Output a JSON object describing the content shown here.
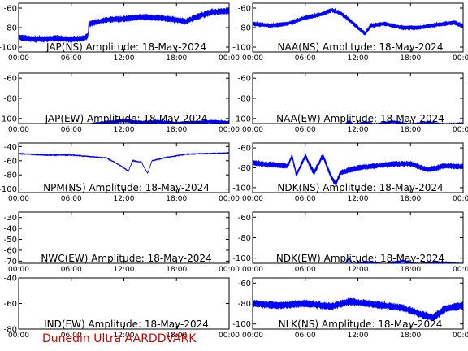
{
  "footer_text": "Dunedin Ultra AARDDVARK",
  "colors": {
    "trace": "#0000ff",
    "axes": "#000000",
    "background": "#ffffff",
    "footer": "#d40000"
  },
  "chart_data": [
    {
      "type": "line",
      "title": "JAP(NS) Amplitude: 18-May-2024",
      "ylim": [
        -105,
        -55
      ],
      "yticks": [
        -100,
        -80,
        -60
      ],
      "xticks": [
        "00:00",
        "06:00",
        "12:00",
        "18:00",
        "00:00"
      ],
      "xlim_hours": [
        0,
        24
      ],
      "series": [
        {
          "points": [
            [
              0,
              -90
            ],
            [
              2,
              -92
            ],
            [
              4,
              -91
            ],
            [
              6,
              -92
            ],
            [
              7.5,
              -91
            ],
            [
              7.9,
              -88
            ],
            [
              8,
              -76
            ],
            [
              10,
              -72
            ],
            [
              12,
              -71
            ],
            [
              14,
              -69
            ],
            [
              16,
              -70
            ],
            [
              18,
              -72
            ],
            [
              19,
              -74
            ],
            [
              20,
              -70
            ],
            [
              22,
              -64
            ],
            [
              24,
              -63
            ]
          ],
          "noise": 7
        }
      ]
    },
    {
      "type": "line",
      "title": "NAA(NS) Amplitude: 18-May-2024",
      "ylim": [
        -105,
        -55
      ],
      "yticks": [
        -100,
        -80,
        -60
      ],
      "xticks": [
        "00:00",
        "06:00",
        "12:00",
        "18:00",
        "00:00"
      ],
      "xlim_hours": [
        0,
        24
      ],
      "series": [
        {
          "points": [
            [
              0,
              -76
            ],
            [
              2,
              -78
            ],
            [
              4,
              -76
            ],
            [
              6,
              -70
            ],
            [
              8,
              -66
            ],
            [
              9,
              -62
            ],
            [
              10,
              -65
            ],
            [
              11,
              -72
            ],
            [
              12,
              -80
            ],
            [
              12.8,
              -86
            ],
            [
              13.5,
              -78
            ],
            [
              15,
              -76
            ],
            [
              17,
              -80
            ],
            [
              19,
              -80
            ],
            [
              21,
              -77
            ],
            [
              23,
              -75
            ],
            [
              24,
              -78
            ]
          ],
          "noise": 5
        }
      ]
    },
    {
      "type": "line",
      "title": "JAP(EW) Amplitude: 18-May-2024",
      "ylim": [
        -105,
        -55
      ],
      "yticks": [
        -100,
        -80,
        -60
      ],
      "xticks": [
        "00:00",
        "06:00",
        "12:00",
        "18:00",
        "00:00"
      ],
      "xlim_hours": [
        0,
        24
      ],
      "series": [
        {
          "points": [
            [
              8.2,
              -106
            ],
            [
              10,
              -104
            ],
            [
              12,
              -102
            ],
            [
              14,
              -104
            ],
            [
              16,
              -103
            ],
            [
              18,
              -105
            ],
            [
              20,
              -104
            ],
            [
              22,
              -103
            ],
            [
              24,
              -104
            ]
          ],
          "noise": 4
        }
      ]
    },
    {
      "type": "line",
      "title": "NAA(EW) Amplitude: 18-May-2024",
      "ylim": [
        -105,
        -55
      ],
      "yticks": [
        -100,
        -80,
        -60
      ],
      "xticks": [
        "00:00",
        "06:00",
        "12:00",
        "18:00",
        "00:00"
      ],
      "xlim_hours": [
        0,
        24
      ],
      "series": [
        {
          "points": [
            [
              10.5,
              -106
            ],
            [
              11,
              -103
            ],
            [
              11.5,
              -106
            ],
            [
              13,
              -104
            ],
            [
              14,
              -106
            ],
            [
              16,
              -103
            ],
            [
              18,
              -106
            ],
            [
              20,
              -104
            ],
            [
              22,
              -106
            ],
            [
              24,
              -105
            ]
          ],
          "noise": 3
        }
      ]
    },
    {
      "type": "line",
      "title": "NPM(NS) Amplitude: 18-May-2024",
      "ylim": [
        -105,
        -35
      ],
      "yticks": [
        -100,
        -80,
        -60,
        -40
      ],
      "xticks": [
        "00:00",
        "06:00",
        "12:00",
        "18:00",
        "00:00"
      ],
      "xlim_hours": [
        0,
        24
      ],
      "series": [
        {
          "points": [
            [
              0,
              -50
            ],
            [
              3,
              -52
            ],
            [
              6,
              -52
            ],
            [
              8,
              -54
            ],
            [
              10,
              -56
            ],
            [
              11.5,
              -66
            ],
            [
              12,
              -70
            ],
            [
              12.5,
              -75
            ],
            [
              13,
              -60
            ],
            [
              14,
              -62
            ],
            [
              14.7,
              -78
            ],
            [
              15.2,
              -60
            ],
            [
              17,
              -55
            ],
            [
              19,
              -51
            ],
            [
              21,
              -50
            ],
            [
              24,
              -49
            ]
          ],
          "noise": 2
        }
      ]
    },
    {
      "type": "line",
      "title": "NDK(NS) Amplitude: 18-May-2024",
      "ylim": [
        -105,
        -55
      ],
      "yticks": [
        -100,
        -80,
        -60
      ],
      "xticks": [
        "00:00",
        "06:00",
        "12:00",
        "18:00",
        "00:00"
      ],
      "xlim_hours": [
        0,
        24
      ],
      "series": [
        {
          "points": [
            [
              0,
              -75
            ],
            [
              2,
              -77
            ],
            [
              4,
              -78
            ],
            [
              4.5,
              -68
            ],
            [
              5,
              -87
            ],
            [
              6,
              -68
            ],
            [
              7,
              -85
            ],
            [
              8,
              -68
            ],
            [
              9,
              -90
            ],
            [
              9.5,
              -96
            ],
            [
              10,
              -85
            ],
            [
              12,
              -80
            ],
            [
              14,
              -78
            ],
            [
              16,
              -76
            ],
            [
              18,
              -76
            ],
            [
              20,
              -82
            ],
            [
              22,
              -78
            ],
            [
              24,
              -79
            ]
          ],
          "noise": 6
        }
      ]
    },
    {
      "type": "line",
      "title": "NWC(EW) Amplitude: 18-May-2024",
      "ylim": [
        -72,
        -25
      ],
      "yticks": [
        -70,
        -60,
        -50,
        -40,
        -30
      ],
      "xticks": [
        "00:00",
        "06:00",
        "12:00",
        "18:00",
        "00:00"
      ],
      "xlim_hours": [
        0,
        24
      ],
      "series": []
    },
    {
      "type": "line",
      "title": "NDK(EW) Amplitude: 18-May-2024",
      "ylim": [
        -105,
        -55
      ],
      "yticks": [
        -100,
        -80,
        -60
      ],
      "xticks": [
        "00:00",
        "06:00",
        "12:00",
        "18:00",
        "00:00"
      ],
      "xlim_hours": [
        0,
        24
      ],
      "series": [
        {
          "points": [
            [
              10.5,
              -106
            ],
            [
              11,
              -100
            ],
            [
              11.4,
              -106
            ],
            [
              13,
              -104
            ],
            [
              15,
              -106
            ],
            [
              17,
              -103
            ],
            [
              19,
              -106
            ],
            [
              21,
              -104
            ],
            [
              24,
              -106
            ]
          ],
          "noise": 3
        }
      ]
    },
    {
      "type": "line",
      "title": "IND(EW) Amplitude: 18-May-2024",
      "ylim": [
        -80,
        -40
      ],
      "yticks": [
        -80,
        -60,
        -40
      ],
      "xticks": [
        "00:00",
        "06:00",
        "12:00",
        "18:00",
        "00:00"
      ],
      "xlim_hours": [
        0,
        24
      ],
      "series": []
    },
    {
      "type": "line",
      "title": "NLK(NS) Amplitude: 18-May-2024",
      "ylim": [
        -105,
        -55
      ],
      "yticks": [
        -100,
        -80,
        -60
      ],
      "xticks": [
        "00:00",
        "06:00",
        "12:00",
        "18:00",
        "00:00"
      ],
      "xlim_hours": [
        0,
        24
      ],
      "series": [
        {
          "points": [
            [
              0,
              -80
            ],
            [
              3,
              -82
            ],
            [
              6,
              -80
            ],
            [
              9,
              -83
            ],
            [
              11,
              -78
            ],
            [
              13,
              -80
            ],
            [
              15,
              -82
            ],
            [
              17,
              -84
            ],
            [
              19,
              -90
            ],
            [
              20.5,
              -94
            ],
            [
              22,
              -85
            ],
            [
              24,
              -82
            ]
          ],
          "noise": 8
        }
      ]
    }
  ]
}
